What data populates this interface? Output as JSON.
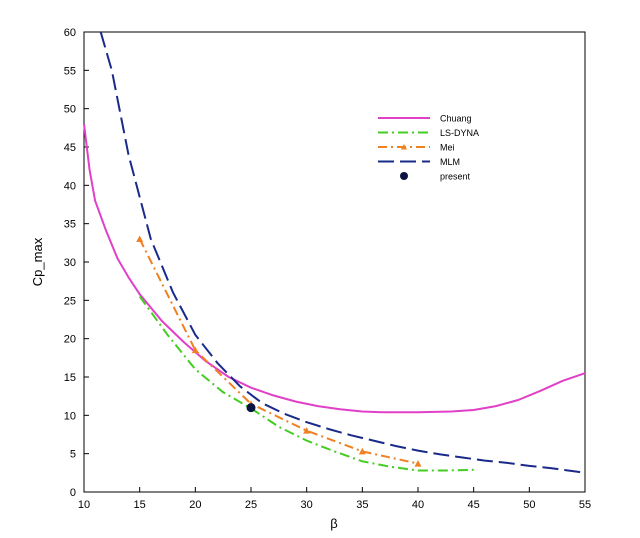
{
  "chart_data": {
    "type": "line",
    "title": "",
    "xlabel": "β",
    "ylabel": "Cp_max",
    "xlim": [
      10,
      55
    ],
    "ylim": [
      0,
      60
    ],
    "xticks": [
      10,
      15,
      20,
      25,
      30,
      35,
      40,
      45,
      50,
      55
    ],
    "yticks": [
      0,
      5,
      10,
      15,
      20,
      25,
      30,
      35,
      40,
      45,
      50,
      55,
      60
    ],
    "grid": false,
    "legend_position": "top-right",
    "series": [
      {
        "name": "Chuang",
        "style": "solid",
        "color": "#e040c8",
        "x": [
          10,
          10.5,
          11,
          12,
          13,
          14,
          15,
          17,
          19,
          21,
          23,
          25,
          27,
          29,
          31,
          33,
          35,
          37,
          40,
          43,
          45,
          47,
          49,
          51,
          53,
          55
        ],
        "y": [
          48,
          42,
          38,
          34,
          30.5,
          28,
          25.8,
          22.3,
          19.5,
          17,
          15,
          13.6,
          12.6,
          11.8,
          11.2,
          10.8,
          10.5,
          10.4,
          10.4,
          10.5,
          10.7,
          11.2,
          12,
          13.2,
          14.5,
          15.5
        ]
      },
      {
        "name": "LS-DYNA",
        "style": "dashdot",
        "color": "#44cc22",
        "x": [
          15,
          17.5,
          20,
          22.5,
          25,
          27.5,
          30,
          32.5,
          35,
          37.5,
          40,
          41,
          42.5,
          45
        ],
        "y": [
          25.5,
          20.5,
          16,
          13,
          10.9,
          8.5,
          6.7,
          5.3,
          4,
          3.3,
          2.8,
          2.8,
          2.8,
          2.9
        ]
      },
      {
        "name": "Mei",
        "style": "dashdotmarker",
        "color": "#f08020",
        "x": [
          15,
          20,
          25,
          30,
          35,
          40
        ],
        "y": [
          33,
          18.5,
          11.5,
          8,
          5.3,
          3.7
        ]
      },
      {
        "name": "MLM",
        "style": "longdash",
        "color": "#1a2a8a",
        "x": [
          11.5,
          12.5,
          14,
          16,
          18,
          20,
          22,
          24,
          26,
          28,
          30,
          32,
          34,
          36,
          38,
          40,
          42,
          44,
          46,
          48,
          50,
          52,
          54,
          55
        ],
        "y": [
          60,
          55,
          44,
          33,
          26,
          20.5,
          16.8,
          13.8,
          11.6,
          10.2,
          9.1,
          8.2,
          7.4,
          6.7,
          6,
          5.4,
          4.9,
          4.5,
          4.1,
          3.8,
          3.4,
          3.1,
          2.7,
          2.5
        ]
      },
      {
        "name": "present",
        "style": "point",
        "color": "#0a1440",
        "x": [
          25
        ],
        "y": [
          11
        ]
      }
    ]
  }
}
